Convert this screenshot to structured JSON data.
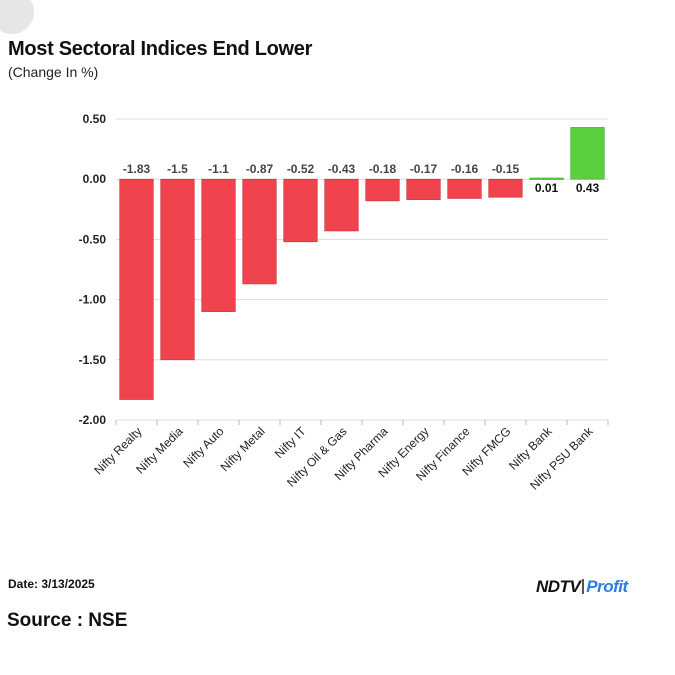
{
  "header": {
    "title": "Most Sectoral Indices End Lower",
    "subtitle": "(Change In %)"
  },
  "footer": {
    "date": "Date: 3/13/2025",
    "source": "Source : NSE",
    "logo_part1": "NDTV",
    "logo_part2": "Profit"
  },
  "colors": {
    "negative": "#f0434e",
    "positive": "#5ccf3e",
    "grid": "#dddddd",
    "axis_text": "#222222",
    "label_text": "#444444"
  },
  "chart_data": {
    "type": "bar",
    "title": "Most Sectoral Indices End Lower",
    "subtitle": "(Change In %)",
    "xlabel": "",
    "ylabel": "",
    "categories": [
      "Nifty Realty",
      "Nifty Media",
      "Nifty Auto",
      "Nifty Metal",
      "Nifty IT",
      "Nifty Oil & Gas",
      "Nifty Pharma",
      "Nifty Energy",
      "Nifty Finance",
      "Nifty FMCG",
      "Nifty Bank",
      "Nifty PSU Bank"
    ],
    "values": [
      -1.83,
      -1.5,
      -1.1,
      -0.87,
      -0.52,
      -0.43,
      -0.18,
      -0.17,
      -0.16,
      -0.15,
      0.01,
      0.43
    ],
    "data_labels": [
      "-1.83",
      "-1.5",
      "-1.1",
      "-0.87",
      "-0.52",
      "-0.43",
      "-0.18",
      "-0.17",
      "-0.16",
      "-0.15",
      "0.01",
      "0.43"
    ],
    "yticks": [
      0.5,
      0,
      -0.5,
      -1,
      -1.5,
      -2
    ],
    "ytick_labels": [
      "0.50",
      "0.00",
      "-0.50",
      "-1.00",
      "-1.50",
      "-2.00"
    ],
    "ylim": [
      -2,
      0.5
    ],
    "grid": true,
    "legend": "none"
  }
}
